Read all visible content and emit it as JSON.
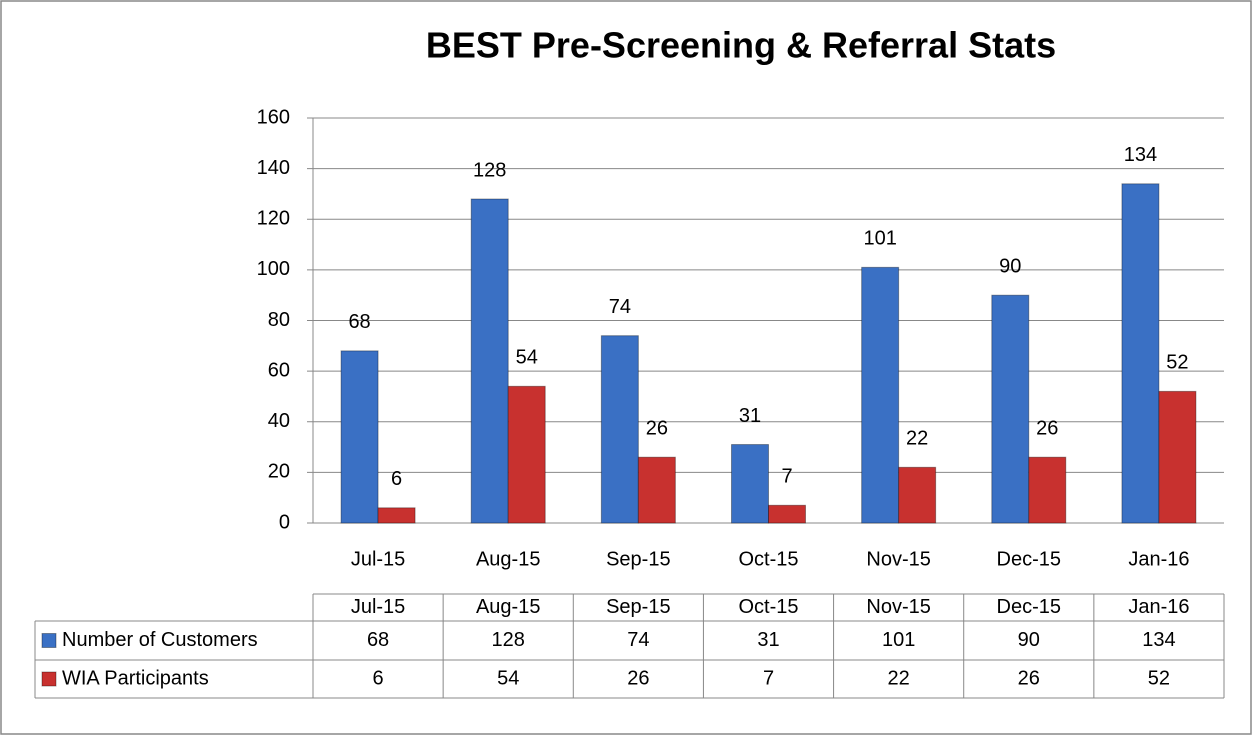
{
  "chart_data": {
    "type": "bar",
    "title": "BEST Pre-Screening & Referral Stats",
    "categories": [
      "Jul-15",
      "Aug-15",
      "Sep-15",
      "Oct-15",
      "Nov-15",
      "Dec-15",
      "Jan-16"
    ],
    "series": [
      {
        "name": "Number of Customers",
        "color": "#3a70c4",
        "values": [
          68,
          128,
          74,
          31,
          101,
          90,
          134
        ]
      },
      {
        "name": "WIA Participants",
        "color": "#c8312f",
        "values": [
          6,
          54,
          26,
          7,
          22,
          26,
          52
        ]
      }
    ],
    "ylim": [
      0,
      160
    ],
    "yticks": [
      0,
      20,
      40,
      60,
      80,
      100,
      120,
      140,
      160
    ],
    "grid": true
  }
}
